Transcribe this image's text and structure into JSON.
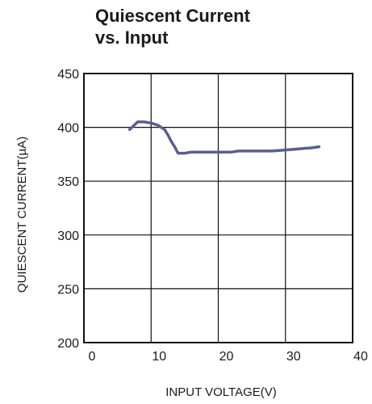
{
  "chart_data": {
    "type": "line",
    "title_lines": [
      "Quiescent Current",
      "vs. Input"
    ],
    "xlabel": "INPUT VOLTAGE(V)",
    "ylabel": "QUIESCENT CURRENT(µA)",
    "xlim": [
      0,
      40
    ],
    "ylim": [
      200,
      450
    ],
    "x_ticks": [
      0,
      10,
      20,
      30,
      40
    ],
    "y_ticks": [
      200,
      250,
      300,
      350,
      400,
      450
    ],
    "grid": true,
    "line_color": "#5a5f8f",
    "series": [
      {
        "x": [
          6.8,
          8,
          9,
          10,
          11,
          12,
          12.5,
          13,
          13.5,
          14,
          14.5,
          15,
          16,
          18,
          20,
          22,
          23,
          24,
          26,
          28,
          30,
          32,
          34,
          35
        ],
        "y": [
          398,
          405,
          405,
          404,
          402,
          398,
          393,
          387,
          382,
          376,
          376,
          376,
          377,
          377,
          377,
          377,
          378,
          378,
          378,
          378,
          379,
          380,
          381,
          382
        ]
      }
    ]
  }
}
